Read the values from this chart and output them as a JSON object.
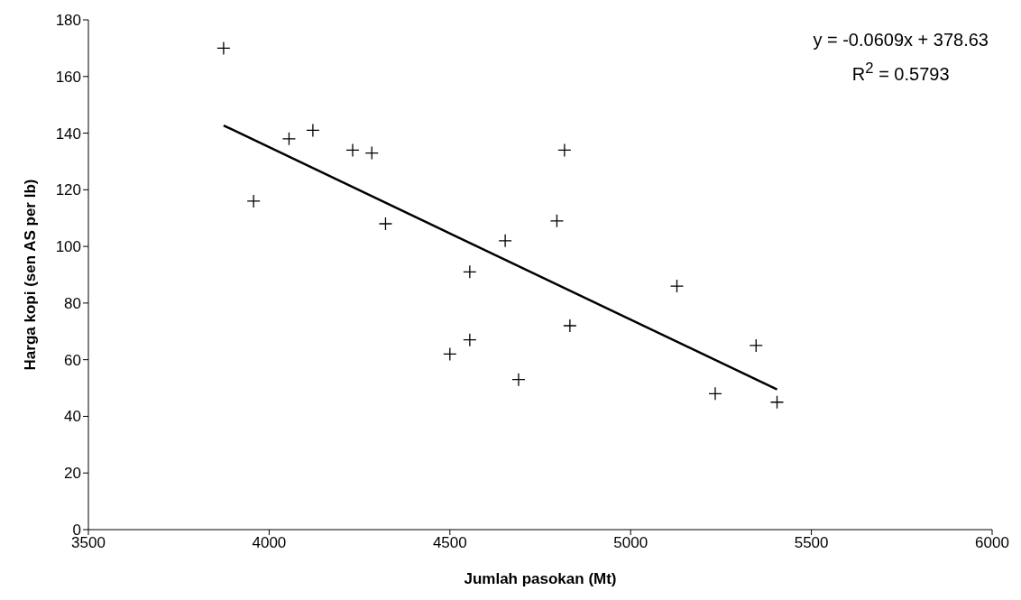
{
  "chart_data": {
    "type": "scatter",
    "xlabel": "Jumlah pasokan (Mt)",
    "ylabel": "Harga kopi (sen AS per lb)",
    "xlim": [
      3500,
      6000
    ],
    "xticks": [
      3500,
      4000,
      4500,
      5000,
      5500,
      6000
    ],
    "ylim": [
      0,
      180
    ],
    "yticks": [
      0,
      20,
      40,
      60,
      80,
      100,
      120,
      140,
      160,
      180
    ],
    "grid": false,
    "series": [
      {
        "marker": "cross",
        "color": "#000000",
        "x": [
          3874,
          3957,
          4055,
          4121,
          4231,
          4284,
          4322,
          4500,
          4555,
          4555,
          4653,
          4690,
          4796,
          4817,
          4832,
          5128,
          5234,
          5347,
          5405
        ],
        "values": [
          170,
          116,
          138,
          141,
          134,
          133,
          108,
          62,
          67,
          91,
          102,
          53,
          109,
          134,
          72,
          86,
          48,
          65,
          45
        ]
      },
      {
        "type": "line",
        "marker": "none",
        "color": "#000000",
        "x": [
          3874,
          5405
        ],
        "values": [
          142.7,
          49.5
        ]
      }
    ],
    "annotations": [
      "y = -0.0609x + 378.63",
      "R$^{2}$ = 0.5793"
    ]
  }
}
